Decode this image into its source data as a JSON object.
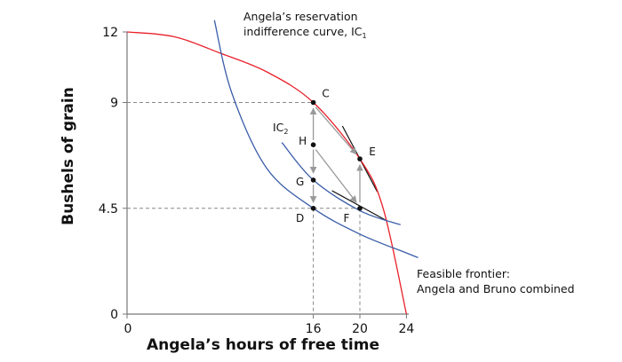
{
  "chart_data": {
    "type": "line",
    "xlabel": "Angela’s hours of free time",
    "ylabel": "Bushels of grain",
    "xlim": [
      0,
      24
    ],
    "ylim": [
      0,
      12
    ],
    "x_ticks": [
      "0",
      "16",
      "20",
      "24"
    ],
    "y_ticks": [
      "0",
      "4.5",
      "9",
      "12"
    ],
    "x_tick_values": [
      0,
      16,
      20,
      24
    ],
    "y_tick_values": [
      0,
      4.5,
      9,
      12
    ],
    "series": [
      {
        "name": "Feasible frontier",
        "color": "#e8202a",
        "x": [
          0,
          4,
          8,
          12,
          16,
          20,
          22,
          24
        ],
        "y": [
          12,
          11.8,
          11.1,
          10.3,
          9,
          6.6,
          4.5,
          0
        ]
      },
      {
        "name": "IC1",
        "color": "#3a5da8",
        "x": [
          7.5,
          9,
          12,
          16,
          20,
          24,
          25
        ],
        "y": [
          12.5,
          9.4,
          6.2,
          4.5,
          3.4,
          2.6,
          2.4
        ]
      },
      {
        "name": "IC2",
        "color": "#3a5da8",
        "x": [
          13.3,
          16,
          20,
          23.5
        ],
        "y": [
          7.3,
          5.7,
          4.4,
          3.8
        ]
      }
    ],
    "points": [
      {
        "label": "C",
        "x": 16,
        "y": 9
      },
      {
        "label": "E",
        "x": 20,
        "y": 6.6
      },
      {
        "label": "H",
        "x": 16,
        "y": 7.2
      },
      {
        "label": "G",
        "x": 16,
        "y": 5.7
      },
      {
        "label": "D",
        "x": 16,
        "y": 4.5
      },
      {
        "label": "F",
        "x": 20,
        "y": 4.5
      }
    ],
    "annotations": {
      "ic1_line1": "Angela’s reservation",
      "ic1_line2": "indifference curve, IC",
      "ic1_sub": "1",
      "ic2_label": "IC",
      "ic2_sub": "2",
      "frontier_line1": "Feasible frontier:",
      "frontier_line2": "Angela and Bruno combined"
    },
    "colors": {
      "frontier": "#e8202a",
      "indifference": "#3a5da8",
      "guide": "#888888",
      "arrow": "#999999"
    },
    "grid": false
  }
}
